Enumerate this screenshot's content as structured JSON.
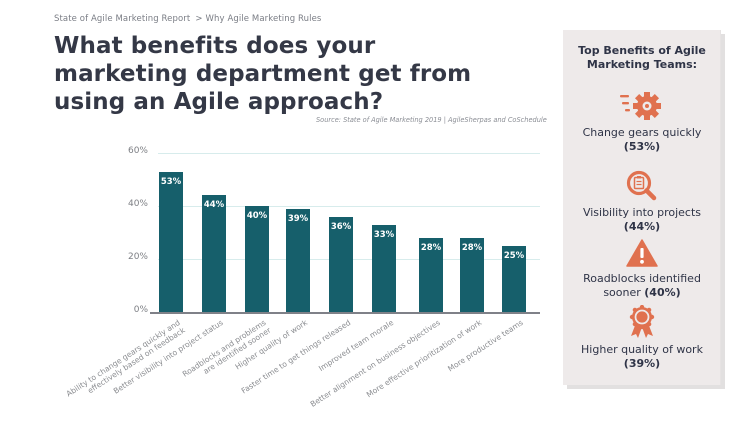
{
  "header": {
    "breadcrumb": [
      "State of Agile Marketing Report",
      "Why Agile Marketing Rules"
    ],
    "breadcrumb_separator": ">",
    "title": "What benefits does your marketing department get from using an Agile approach?",
    "source": "Source: State of Agile Marketing 2019 | AgileSherpas and CoSchedule"
  },
  "colors": {
    "bar": "#165f6b",
    "accent": "#e0714f",
    "panel_bg": "#eeeaea",
    "text_dark": "#2f3447"
  },
  "chart_data": {
    "type": "bar",
    "title": "What benefits does your marketing department get from using an Agile approach?",
    "xlabel": "",
    "ylabel": "",
    "ylim": [
      0,
      60
    ],
    "yticks": [
      "0%",
      "20%",
      "40%",
      "60%"
    ],
    "grid": true,
    "legend": null,
    "categories": [
      "Ability to change gears quickly and effectively based on feedback",
      "Better visibility into project status",
      "Roadblocks and problems are identified sooner",
      "Higher quality of work",
      "Faster time to get things released",
      "Improved team morale",
      "Better alignment on business objectives",
      "More effective prioritization of work",
      "More productive teams"
    ],
    "category_lines": [
      [
        "Ability to change gears quickly and",
        "effectively based on feedback"
      ],
      [
        "Better visibility into project status"
      ],
      [
        "Roadblocks and problems",
        "are identified sooner"
      ],
      [
        "Higher quality of work"
      ],
      [
        "Faster  time to get things released"
      ],
      [
        "Improved team morale"
      ],
      [
        "Better alignment on business objectives"
      ],
      [
        "More effective prioritization of work"
      ],
      [
        "More productive teams"
      ]
    ],
    "values": [
      53,
      44,
      40,
      39,
      36,
      33,
      28,
      28,
      25
    ],
    "value_labels": [
      "53%",
      "44%",
      "40%",
      "39%",
      "36%",
      "33%",
      "28%",
      "28%",
      "25%"
    ]
  },
  "panel": {
    "title": "Top Benefits of Agile Marketing Teams:",
    "items": [
      {
        "icon": "fast-gear-icon",
        "label": "Change gears quickly",
        "pct": "(53%)"
      },
      {
        "icon": "magnifier-clipboard-icon",
        "label": "Visibility into projects",
        "pct": "(44%)"
      },
      {
        "icon": "warning-triangle-icon",
        "label": "Roadblocks identified sooner",
        "pct": "(40%)"
      },
      {
        "icon": "award-ribbon-icon",
        "label": "Higher quality of work",
        "pct": "(39%)"
      }
    ]
  }
}
